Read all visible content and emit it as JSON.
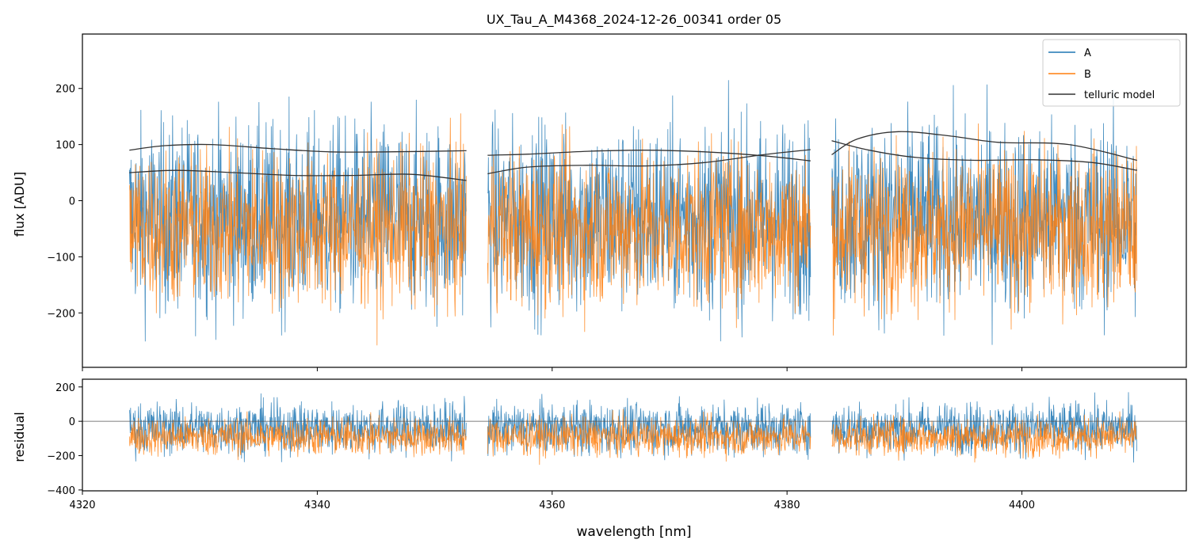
{
  "chart_data": [
    {
      "type": "line",
      "panel": "spectrum",
      "title": "UX_Tau_A_M4368_2024-12-26_00341  order 05",
      "xlabel": "",
      "ylabel": "flux [ADU]",
      "xlim": [
        4320,
        4414
      ],
      "ylim": [
        -297,
        297
      ],
      "yticks": [
        -200,
        -100,
        0,
        100,
        200
      ],
      "ytick_labels": [
        "−200",
        "−100",
        "0",
        "100",
        "200"
      ],
      "grid": false,
      "legend_position": "top-right",
      "colors": {
        "A": "#1f77b4",
        "B": "#ff7f0e",
        "telluric": "#333333"
      },
      "segments": [
        [
          4324.0,
          4352.7
        ],
        [
          4354.5,
          4382.0
        ],
        [
          4383.8,
          4409.8
        ]
      ],
      "series": [
        {
          "name": "A",
          "kind": "noisy-spectrum",
          "center": -30,
          "spread": 170
        },
        {
          "name": "B",
          "kind": "noisy-spectrum",
          "center": -50,
          "spread": 140
        },
        {
          "name": "telluric model",
          "kind": "smooth",
          "curves": [
            {
              "x": [
                4324.0,
                4327.0,
                4331.0,
                4336.0,
                4341.0,
                4346.0,
                4352.7
              ],
              "y": [
                90,
                98,
                100,
                93,
                87,
                87,
                89
              ]
            },
            {
              "x": [
                4324.0,
                4328.0,
                4333.0,
                4338.0,
                4343.0,
                4348.0,
                4352.7
              ],
              "y": [
                50,
                54,
                50,
                45,
                45,
                47,
                36
              ]
            },
            {
              "x": [
                4354.5,
                4358.0,
                4363.0,
                4368.0,
                4373.0,
                4378.0,
                4382.0
              ],
              "y": [
                81,
                83,
                88,
                90,
                87,
                80,
                71
              ]
            },
            {
              "x": [
                4354.5,
                4358.0,
                4363.0,
                4368.0,
                4373.0,
                4378.0,
                4382.0
              ],
              "y": [
                48,
                60,
                63,
                62,
                68,
                82,
                91
              ]
            },
            {
              "x": [
                4383.8,
                4386.0,
                4389.5,
                4394.0,
                4398.0,
                4404.0,
                4409.8
              ],
              "y": [
                82,
                110,
                123,
                115,
                104,
                100,
                72
              ]
            },
            {
              "x": [
                4383.8,
                4387.0,
                4391.0,
                4396.0,
                4401.0,
                4406.0,
                4409.8
              ],
              "y": [
                107,
                90,
                77,
                72,
                73,
                68,
                54
              ]
            }
          ]
        }
      ],
      "legend": [
        "A",
        "B",
        "telluric model"
      ]
    },
    {
      "type": "line",
      "panel": "residual",
      "xlabel": "wavelength [nm]",
      "ylabel": "residual",
      "xlim": [
        4320,
        4414
      ],
      "ylim": [
        -405,
        245
      ],
      "xticks": [
        4320,
        4340,
        4360,
        4380,
        4400
      ],
      "xtick_labels": [
        "4320",
        "4340",
        "4360",
        "4380",
        "4400"
      ],
      "yticks": [
        -400,
        -200,
        0,
        200
      ],
      "ytick_labels": [
        "−400",
        "−200",
        "0",
        "200"
      ],
      "grid": false,
      "zero_line": 0,
      "segments": [
        [
          4324.0,
          4352.7
        ],
        [
          4354.5,
          4382.0
        ],
        [
          4383.8,
          4409.8
        ]
      ],
      "series": [
        {
          "name": "A",
          "kind": "noisy-spectrum",
          "center": -40,
          "spread": 150
        },
        {
          "name": "B",
          "kind": "noisy-spectrum",
          "center": -90,
          "spread": 110
        }
      ]
    }
  ]
}
